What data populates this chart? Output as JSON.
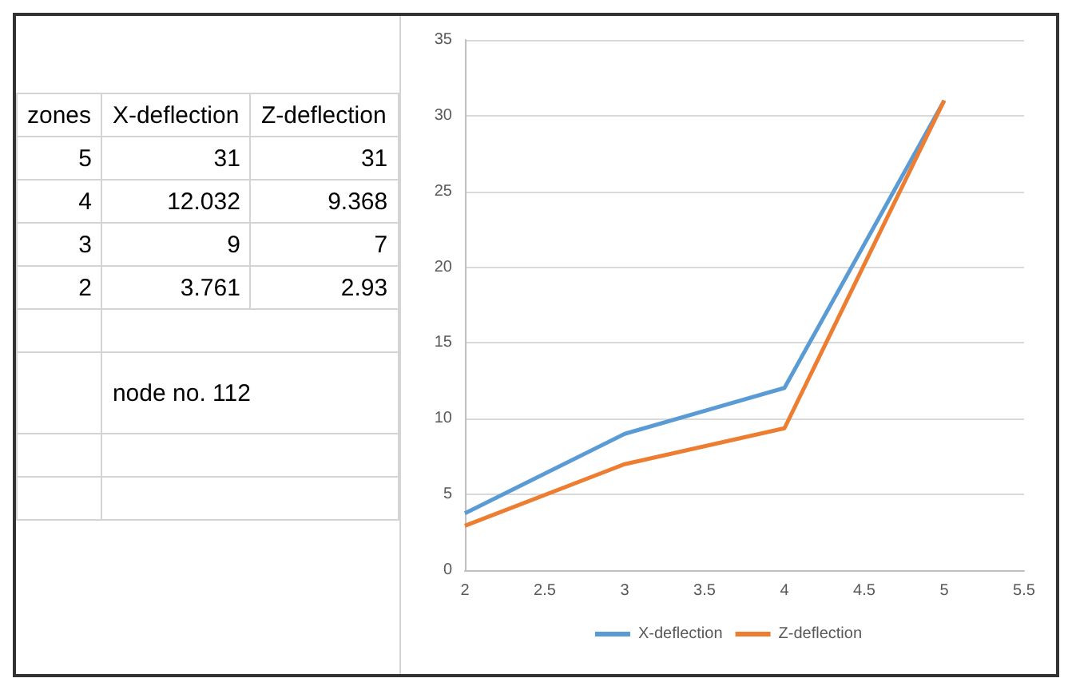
{
  "chart_data": {
    "type": "line",
    "x": [
      2,
      3,
      4,
      5
    ],
    "series": [
      {
        "name": "X-deflection",
        "color": "#5b9bd5",
        "values": [
          3.761,
          9,
          12.032,
          31
        ]
      },
      {
        "name": "Z-deflection",
        "color": "#ed7d31",
        "values": [
          2.93,
          7,
          9.368,
          31
        ]
      }
    ],
    "xlim": [
      2,
      5.5
    ],
    "xticks": [
      2,
      2.5,
      3,
      3.5,
      4,
      4.5,
      5,
      5.5
    ],
    "ylim": [
      0,
      35
    ],
    "yticks": [
      0,
      5,
      10,
      15,
      20,
      25,
      30,
      35
    ],
    "grid": "y",
    "legend": "bottom",
    "annotations": [
      "zones",
      "5",
      "31",
      "31",
      "4",
      "12.032",
      "9.368",
      "3",
      "9",
      "7",
      "2",
      "3.761",
      "2.93",
      "node no. 112"
    ]
  }
}
